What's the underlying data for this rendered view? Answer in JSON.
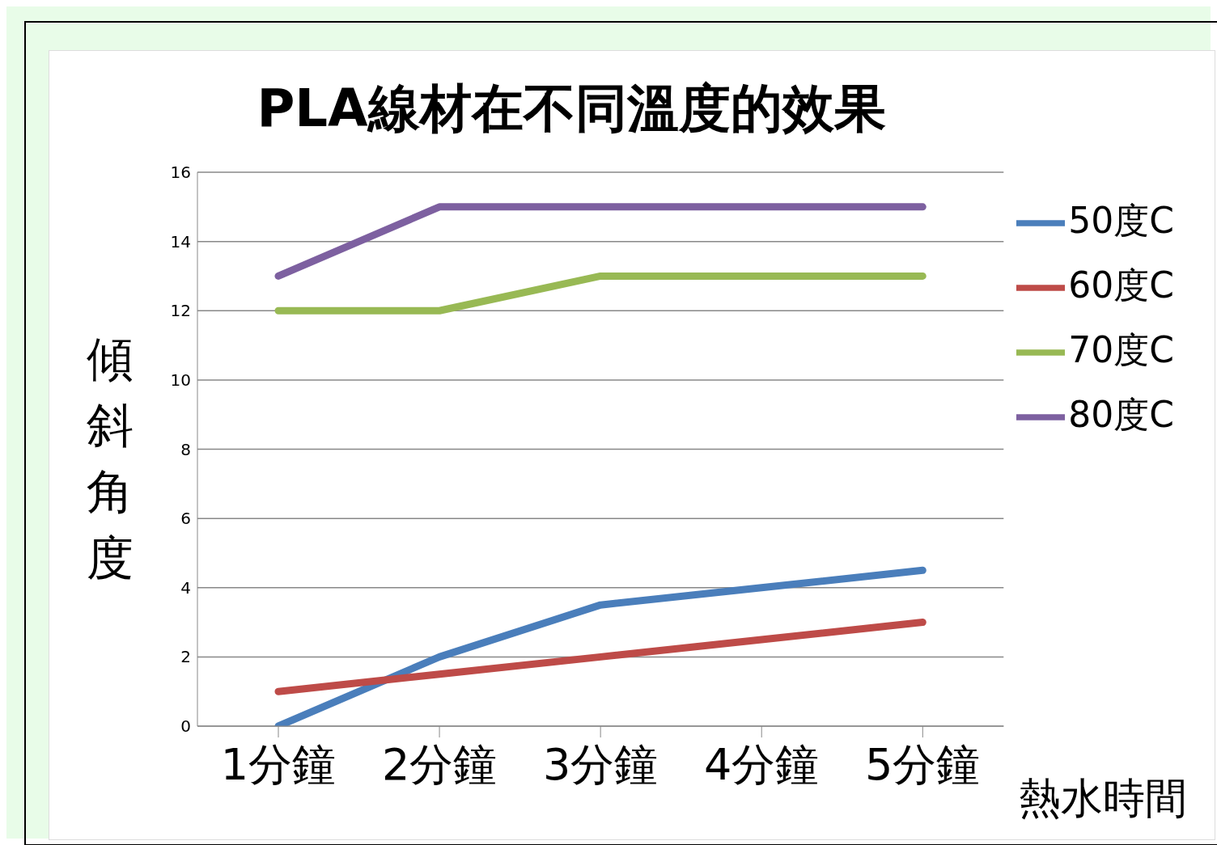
{
  "chart_data": {
    "type": "line",
    "title": "PLA線材在不同溫度的效果",
    "xlabel": "熱水時間",
    "ylabel": "傾斜角度",
    "categories": [
      "1分鐘",
      "2分鐘",
      "3分鐘",
      "4分鐘",
      "5分鐘"
    ],
    "series": [
      {
        "name": "50度C",
        "color": "#4a7ebb",
        "values": [
          0,
          2,
          3.5,
          4,
          4.5
        ]
      },
      {
        "name": "60度C",
        "color": "#be4b48",
        "values": [
          1,
          1.5,
          2,
          2.5,
          3
        ]
      },
      {
        "name": "70度C",
        "color": "#98b954",
        "values": [
          12,
          12,
          13,
          13,
          13
        ]
      },
      {
        "name": "80度C",
        "color": "#7d60a0",
        "values": [
          13,
          15,
          15,
          15,
          15
        ]
      }
    ],
    "ylim": [
      0,
      16
    ],
    "yticks": [
      0,
      2,
      4,
      6,
      8,
      10,
      12,
      14,
      16
    ],
    "grid": "y",
    "legend": "top right",
    "marker": "none",
    "line_style": "solid"
  }
}
